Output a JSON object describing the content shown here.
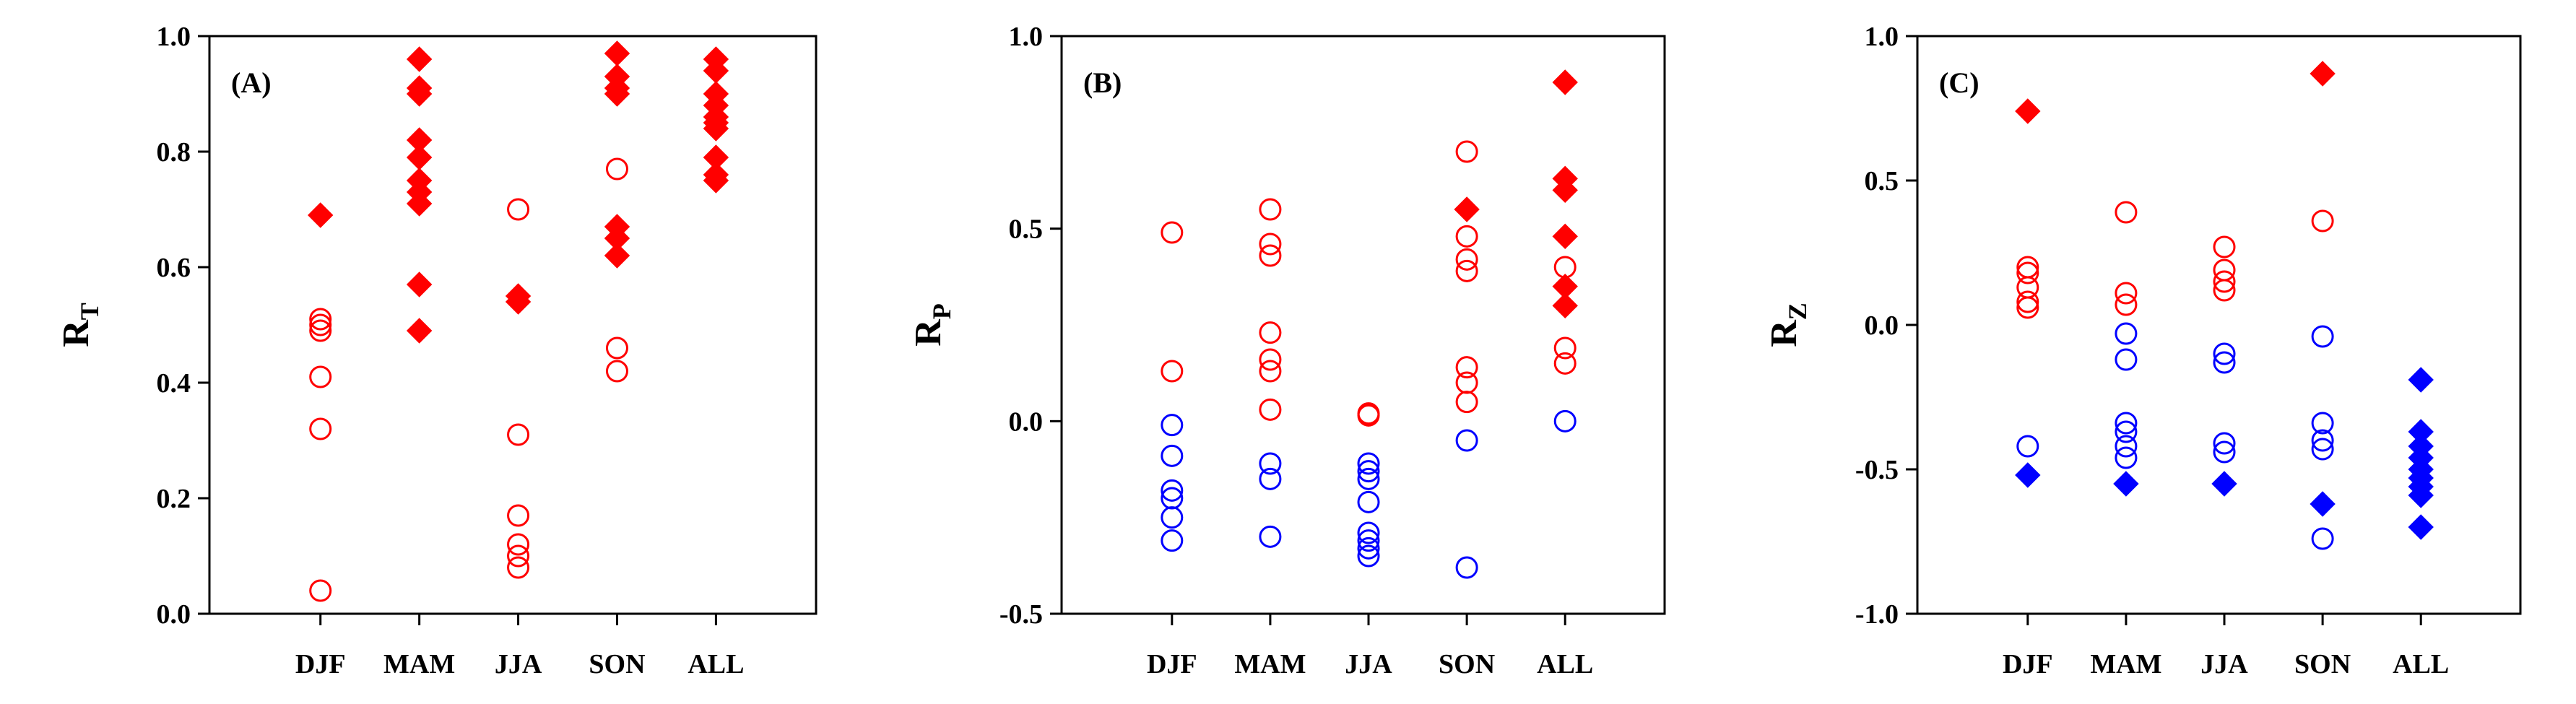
{
  "chart_data": [
    {
      "type": "scatter",
      "panel_label": "(A)",
      "ylabel": "R",
      "ylabel_sub": "T",
      "categories": [
        "DJF",
        "MAM",
        "JJA",
        "SON",
        "ALL"
      ],
      "ylim": [
        0.0,
        1.0
      ],
      "yticks": [
        0.0,
        0.2,
        0.4,
        0.6,
        0.8,
        1.0
      ],
      "ytick_labels": [
        "0.0",
        "0.2",
        "0.4",
        "0.6",
        "0.8",
        "1.0"
      ],
      "series": [
        {
          "name": "positive-significant",
          "color": "#ff0000",
          "marker": "filled-diamond",
          "values": [
            [
              0.69
            ],
            [
              0.96,
              0.91,
              0.9,
              0.82,
              0.79,
              0.75,
              0.73,
              0.71,
              0.57,
              0.49
            ],
            [
              0.55,
              0.54
            ],
            [
              0.97,
              0.93,
              0.91,
              0.9,
              0.67,
              0.65,
              0.62
            ],
            [
              0.96,
              0.94,
              0.9,
              0.88,
              0.86,
              0.85,
              0.84,
              0.79,
              0.76,
              0.75
            ]
          ]
        },
        {
          "name": "positive-insignificant",
          "color": "#ff0000",
          "marker": "open-circle",
          "values": [
            [
              0.51,
              0.5,
              0.49,
              0.41,
              0.32,
              0.04
            ],
            [],
            [
              0.7,
              0.31,
              0.17,
              0.12,
              0.1,
              0.08
            ],
            [
              0.77,
              0.46,
              0.42
            ],
            []
          ]
        }
      ]
    },
    {
      "type": "scatter",
      "panel_label": "(B)",
      "ylabel": "R",
      "ylabel_sub": "P",
      "categories": [
        "DJF",
        "MAM",
        "JJA",
        "SON",
        "ALL"
      ],
      "ylim": [
        -0.5,
        1.0
      ],
      "yticks": [
        -0.5,
        0.0,
        0.5,
        1.0
      ],
      "ytick_labels": [
        "-0.5",
        "0.0",
        "0.5",
        "1.0"
      ],
      "series": [
        {
          "name": "positive-significant",
          "color": "#ff0000",
          "marker": "filled-diamond",
          "values": [
            [],
            [],
            [],
            [
              0.55
            ],
            [
              0.88,
              0.63,
              0.6,
              0.48,
              0.35,
              0.3
            ]
          ]
        },
        {
          "name": "positive-insignificant",
          "color": "#ff0000",
          "marker": "open-circle",
          "values": [
            [
              0.49,
              0.13
            ],
            [
              0.55,
              0.46,
              0.43,
              0.23,
              0.16,
              0.13,
              0.03
            ],
            [
              0.02,
              0.015
            ],
            [
              0.7,
              0.48,
              0.42,
              0.39,
              0.14,
              0.1,
              0.05
            ],
            [
              0.4,
              0.19,
              0.15
            ]
          ]
        },
        {
          "name": "negative-insignificant",
          "color": "#0000ff",
          "marker": "open-circle",
          "values": [
            [
              -0.01,
              -0.09,
              -0.18,
              -0.2,
              -0.25,
              -0.31
            ],
            [
              -0.11,
              -0.15,
              -0.3
            ],
            [
              -0.11,
              -0.13,
              -0.15,
              -0.21,
              -0.29,
              -0.31,
              -0.33,
              -0.35
            ],
            [
              -0.05,
              -0.38
            ],
            [
              0.0
            ]
          ]
        }
      ]
    },
    {
      "type": "scatter",
      "panel_label": "(C)",
      "ylabel": "R",
      "ylabel_sub": "Z",
      "categories": [
        "DJF",
        "MAM",
        "JJA",
        "SON",
        "ALL"
      ],
      "ylim": [
        -1.0,
        1.0
      ],
      "yticks": [
        -1.0,
        -0.5,
        0.0,
        0.5,
        1.0
      ],
      "ytick_labels": [
        "-1.0",
        "-0.5",
        "0.0",
        "0.5",
        "1.0"
      ],
      "series": [
        {
          "name": "positive-significant",
          "color": "#ff0000",
          "marker": "filled-diamond",
          "values": [
            [
              0.74
            ],
            [],
            [],
            [
              0.87
            ],
            []
          ]
        },
        {
          "name": "positive-insignificant",
          "color": "#ff0000",
          "marker": "open-circle",
          "values": [
            [
              0.2,
              0.18,
              0.13,
              0.08,
              0.06
            ],
            [
              0.39,
              0.11,
              0.07
            ],
            [
              0.27,
              0.19,
              0.15,
              0.12
            ],
            [
              0.36
            ],
            []
          ]
        },
        {
          "name": "negative-insignificant",
          "color": "#0000ff",
          "marker": "open-circle",
          "values": [
            [
              -0.42
            ],
            [
              -0.03,
              -0.12,
              -0.34,
              -0.37,
              -0.42,
              -0.46
            ],
            [
              -0.1,
              -0.13,
              -0.41,
              -0.44
            ],
            [
              -0.04,
              -0.34,
              -0.4,
              -0.43,
              -0.74
            ],
            []
          ]
        },
        {
          "name": "negative-significant",
          "color": "#0000ff",
          "marker": "filled-diamond",
          "values": [
            [
              -0.52
            ],
            [
              -0.55
            ],
            [
              -0.55
            ],
            [
              -0.62
            ],
            [
              -0.19,
              -0.37,
              -0.42,
              -0.46,
              -0.5,
              -0.53,
              -0.56,
              -0.59,
              -0.7
            ]
          ]
        }
      ]
    }
  ]
}
